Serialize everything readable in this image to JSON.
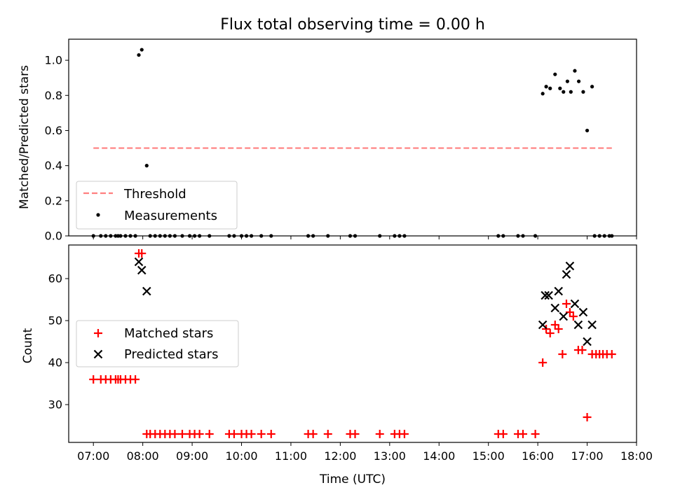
{
  "chart_data": [
    {
      "type": "scatter",
      "title": "Flux total observing time = 0.00 h",
      "ylabel": "Matched/Predicted stars",
      "xlabel": "",
      "xlim": [
        6.5,
        18.0
      ],
      "ylim": [
        0.0,
        1.12
      ],
      "yticks": [
        "0.0",
        "0.2",
        "0.4",
        "0.6",
        "0.8",
        "1.0"
      ],
      "ytick_values": [
        0.0,
        0.2,
        0.4,
        0.6,
        0.8,
        1.0
      ],
      "legend_position": "lower-left",
      "legend": [
        {
          "key": "threshold",
          "label": "Threshold"
        },
        {
          "key": "measurements",
          "label": "Measurements"
        }
      ],
      "series": [
        {
          "name": "Threshold",
          "style": "dashed-line",
          "color": "#ff7f7f",
          "x": [
            7.0,
            17.5
          ],
          "y": [
            0.5,
            0.5
          ]
        },
        {
          "name": "Measurements",
          "style": "dot",
          "color": "#000000",
          "points": [
            [
              7.0,
              0.0
            ],
            [
              7.15,
              0.0
            ],
            [
              7.25,
              0.0
            ],
            [
              7.35,
              0.0
            ],
            [
              7.45,
              0.0
            ],
            [
              7.5,
              0.0
            ],
            [
              7.55,
              0.0
            ],
            [
              7.65,
              0.0
            ],
            [
              7.75,
              0.0
            ],
            [
              7.85,
              0.0
            ],
            [
              7.92,
              1.03
            ],
            [
              7.98,
              1.06
            ],
            [
              8.08,
              0.4
            ],
            [
              8.15,
              0.0
            ],
            [
              8.25,
              0.0
            ],
            [
              8.35,
              0.0
            ],
            [
              8.45,
              0.0
            ],
            [
              8.55,
              0.0
            ],
            [
              8.65,
              0.0
            ],
            [
              8.8,
              0.0
            ],
            [
              8.95,
              0.0
            ],
            [
              9.05,
              0.0
            ],
            [
              9.15,
              0.0
            ],
            [
              9.35,
              0.0
            ],
            [
              9.75,
              0.0
            ],
            [
              9.85,
              0.0
            ],
            [
              10.0,
              0.0
            ],
            [
              10.1,
              0.0
            ],
            [
              10.2,
              0.0
            ],
            [
              10.4,
              0.0
            ],
            [
              10.6,
              0.0
            ],
            [
              11.35,
              0.0
            ],
            [
              11.45,
              0.0
            ],
            [
              11.75,
              0.0
            ],
            [
              12.2,
              0.0
            ],
            [
              12.3,
              0.0
            ],
            [
              12.8,
              0.0
            ],
            [
              13.1,
              0.0
            ],
            [
              13.2,
              0.0
            ],
            [
              13.3,
              0.0
            ],
            [
              15.2,
              0.0
            ],
            [
              15.3,
              0.0
            ],
            [
              15.6,
              0.0
            ],
            [
              15.7,
              0.0
            ],
            [
              15.95,
              0.0
            ],
            [
              16.1,
              0.81
            ],
            [
              16.17,
              0.85
            ],
            [
              16.25,
              0.84
            ],
            [
              16.35,
              0.92
            ],
            [
              16.45,
              0.84
            ],
            [
              16.52,
              0.82
            ],
            [
              16.6,
              0.88
            ],
            [
              16.67,
              0.82
            ],
            [
              16.75,
              0.94
            ],
            [
              16.83,
              0.88
            ],
            [
              16.92,
              0.82
            ],
            [
              17.0,
              0.6
            ],
            [
              17.1,
              0.85
            ],
            [
              17.15,
              0.0
            ],
            [
              17.25,
              0.0
            ],
            [
              17.35,
              0.0
            ],
            [
              17.45,
              0.0
            ],
            [
              17.5,
              0.0
            ]
          ]
        }
      ]
    },
    {
      "type": "scatter",
      "title": "",
      "ylabel": "Count",
      "xlabel": "Time (UTC)",
      "xlim": [
        6.5,
        18.0
      ],
      "ylim": [
        21,
        68
      ],
      "yticks": [
        "30",
        "40",
        "50",
        "60"
      ],
      "ytick_values": [
        30,
        40,
        50,
        60
      ],
      "xticks": [
        "07:00",
        "08:00",
        "09:00",
        "10:00",
        "11:00",
        "12:00",
        "13:00",
        "14:00",
        "15:00",
        "16:00",
        "17:00",
        "18:00"
      ],
      "xtick_values": [
        7,
        8,
        9,
        10,
        11,
        12,
        13,
        14,
        15,
        16,
        17,
        18
      ],
      "legend_position": "center-left",
      "legend": [
        {
          "key": "matched",
          "label": "Matched stars"
        },
        {
          "key": "predicted",
          "label": "Predicted stars"
        }
      ],
      "series": [
        {
          "name": "Matched stars",
          "marker": "plus",
          "color": "#ff0000",
          "points": [
            [
              7.0,
              36
            ],
            [
              7.15,
              36
            ],
            [
              7.25,
              36
            ],
            [
              7.35,
              36
            ],
            [
              7.45,
              36
            ],
            [
              7.5,
              36
            ],
            [
              7.55,
              36
            ],
            [
              7.65,
              36
            ],
            [
              7.75,
              36
            ],
            [
              7.85,
              36
            ],
            [
              7.92,
              66
            ],
            [
              7.98,
              66
            ],
            [
              8.08,
              23
            ],
            [
              8.15,
              23
            ],
            [
              8.25,
              23
            ],
            [
              8.35,
              23
            ],
            [
              8.45,
              23
            ],
            [
              8.55,
              23
            ],
            [
              8.65,
              23
            ],
            [
              8.8,
              23
            ],
            [
              8.95,
              23
            ],
            [
              9.05,
              23
            ],
            [
              9.15,
              23
            ],
            [
              9.35,
              23
            ],
            [
              9.75,
              23
            ],
            [
              9.85,
              23
            ],
            [
              10.0,
              23
            ],
            [
              10.1,
              23
            ],
            [
              10.2,
              23
            ],
            [
              10.4,
              23
            ],
            [
              10.6,
              23
            ],
            [
              11.35,
              23
            ],
            [
              11.45,
              23
            ],
            [
              11.75,
              23
            ],
            [
              12.2,
              23
            ],
            [
              12.3,
              23
            ],
            [
              12.8,
              23
            ],
            [
              13.1,
              23
            ],
            [
              13.2,
              23
            ],
            [
              13.3,
              23
            ],
            [
              15.2,
              23
            ],
            [
              15.3,
              23
            ],
            [
              15.6,
              23
            ],
            [
              15.7,
              23
            ],
            [
              15.95,
              23
            ],
            [
              16.1,
              40
            ],
            [
              16.17,
              48
            ],
            [
              16.25,
              47
            ],
            [
              16.35,
              49
            ],
            [
              16.42,
              48
            ],
            [
              16.5,
              42
            ],
            [
              16.58,
              54
            ],
            [
              16.65,
              52
            ],
            [
              16.72,
              51
            ],
            [
              16.82,
              43
            ],
            [
              16.9,
              43
            ],
            [
              17.0,
              27
            ],
            [
              17.1,
              42
            ],
            [
              17.18,
              42
            ],
            [
              17.25,
              42
            ],
            [
              17.32,
              42
            ],
            [
              17.4,
              42
            ],
            [
              17.5,
              42
            ]
          ]
        },
        {
          "name": "Predicted stars",
          "marker": "x",
          "color": "#000000",
          "points": [
            [
              7.92,
              64
            ],
            [
              7.98,
              62
            ],
            [
              8.08,
              57
            ],
            [
              16.1,
              49
            ],
            [
              16.15,
              56
            ],
            [
              16.22,
              56
            ],
            [
              16.35,
              53
            ],
            [
              16.42,
              57
            ],
            [
              16.52,
              51
            ],
            [
              16.58,
              61
            ],
            [
              16.65,
              63
            ],
            [
              16.75,
              54
            ],
            [
              16.82,
              49
            ],
            [
              16.92,
              52
            ],
            [
              17.0,
              45
            ],
            [
              17.1,
              49
            ]
          ]
        }
      ]
    }
  ]
}
